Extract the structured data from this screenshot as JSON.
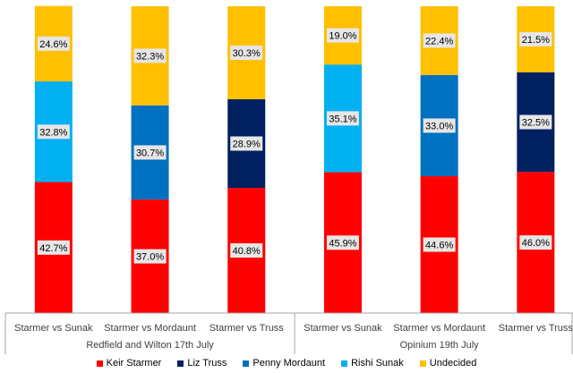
{
  "chart_data": {
    "type": "bar",
    "stacked": true,
    "ylim": [
      0,
      100
    ],
    "grid": false,
    "legend_position": "bottom",
    "categories": [
      "Starmer vs Sunak",
      "Starmer vs Mordaunt",
      "Starmer vs Truss",
      "Starmer vs Sunak",
      "Starmer vs Mordaunt",
      "Starmer vs Truss"
    ],
    "groups": [
      {
        "label": "Redfield and Wilton 17th July",
        "categories": [
          0,
          1,
          2
        ]
      },
      {
        "label": "Opinium 19th July",
        "categories": [
          3,
          4,
          5
        ]
      }
    ],
    "bars": [
      {
        "segments": [
          {
            "series": "Keir Starmer",
            "value": 42.7,
            "label": "42.7%"
          },
          {
            "series": "Rishi Sunak",
            "value": 32.8,
            "label": "32.8%"
          },
          {
            "series": "Undecided",
            "value": 24.6,
            "label": "24.6%"
          }
        ]
      },
      {
        "segments": [
          {
            "series": "Keir Starmer",
            "value": 37.0,
            "label": "37.0%"
          },
          {
            "series": "Penny Mordaunt",
            "value": 30.7,
            "label": "30.7%"
          },
          {
            "series": "Undecided",
            "value": 32.3,
            "label": "32.3%"
          }
        ]
      },
      {
        "segments": [
          {
            "series": "Keir Starmer",
            "value": 40.8,
            "label": "40.8%"
          },
          {
            "series": "Liz Truss",
            "value": 28.9,
            "label": "28.9%"
          },
          {
            "series": "Undecided",
            "value": 30.3,
            "label": "30.3%"
          }
        ]
      },
      {
        "segments": [
          {
            "series": "Keir Starmer",
            "value": 45.9,
            "label": "45.9%"
          },
          {
            "series": "Rishi Sunak",
            "value": 35.1,
            "label": "35.1%"
          },
          {
            "series": "Undecided",
            "value": 19.0,
            "label": "19.0%"
          }
        ]
      },
      {
        "segments": [
          {
            "series": "Keir Starmer",
            "value": 44.6,
            "label": "44.6%"
          },
          {
            "series": "Penny Mordaunt",
            "value": 33.0,
            "label": "33.0%"
          },
          {
            "series": "Undecided",
            "value": 22.4,
            "label": "22.4%"
          }
        ]
      },
      {
        "segments": [
          {
            "series": "Keir Starmer",
            "value": 46.0,
            "label": "46.0%"
          },
          {
            "series": "Liz Truss",
            "value": 32.5,
            "label": "32.5%"
          },
          {
            "series": "Undecided",
            "value": 21.5,
            "label": "21.5%"
          }
        ]
      }
    ],
    "series": [
      {
        "name": "Keir Starmer",
        "color": "#FF0000"
      },
      {
        "name": "Liz Truss",
        "color": "#002060"
      },
      {
        "name": "Penny Mordaunt",
        "color": "#0070C0"
      },
      {
        "name": "Rishi Sunak",
        "color": "#00B0F0"
      },
      {
        "name": "Undecided",
        "color": "#FFC000"
      }
    ]
  }
}
